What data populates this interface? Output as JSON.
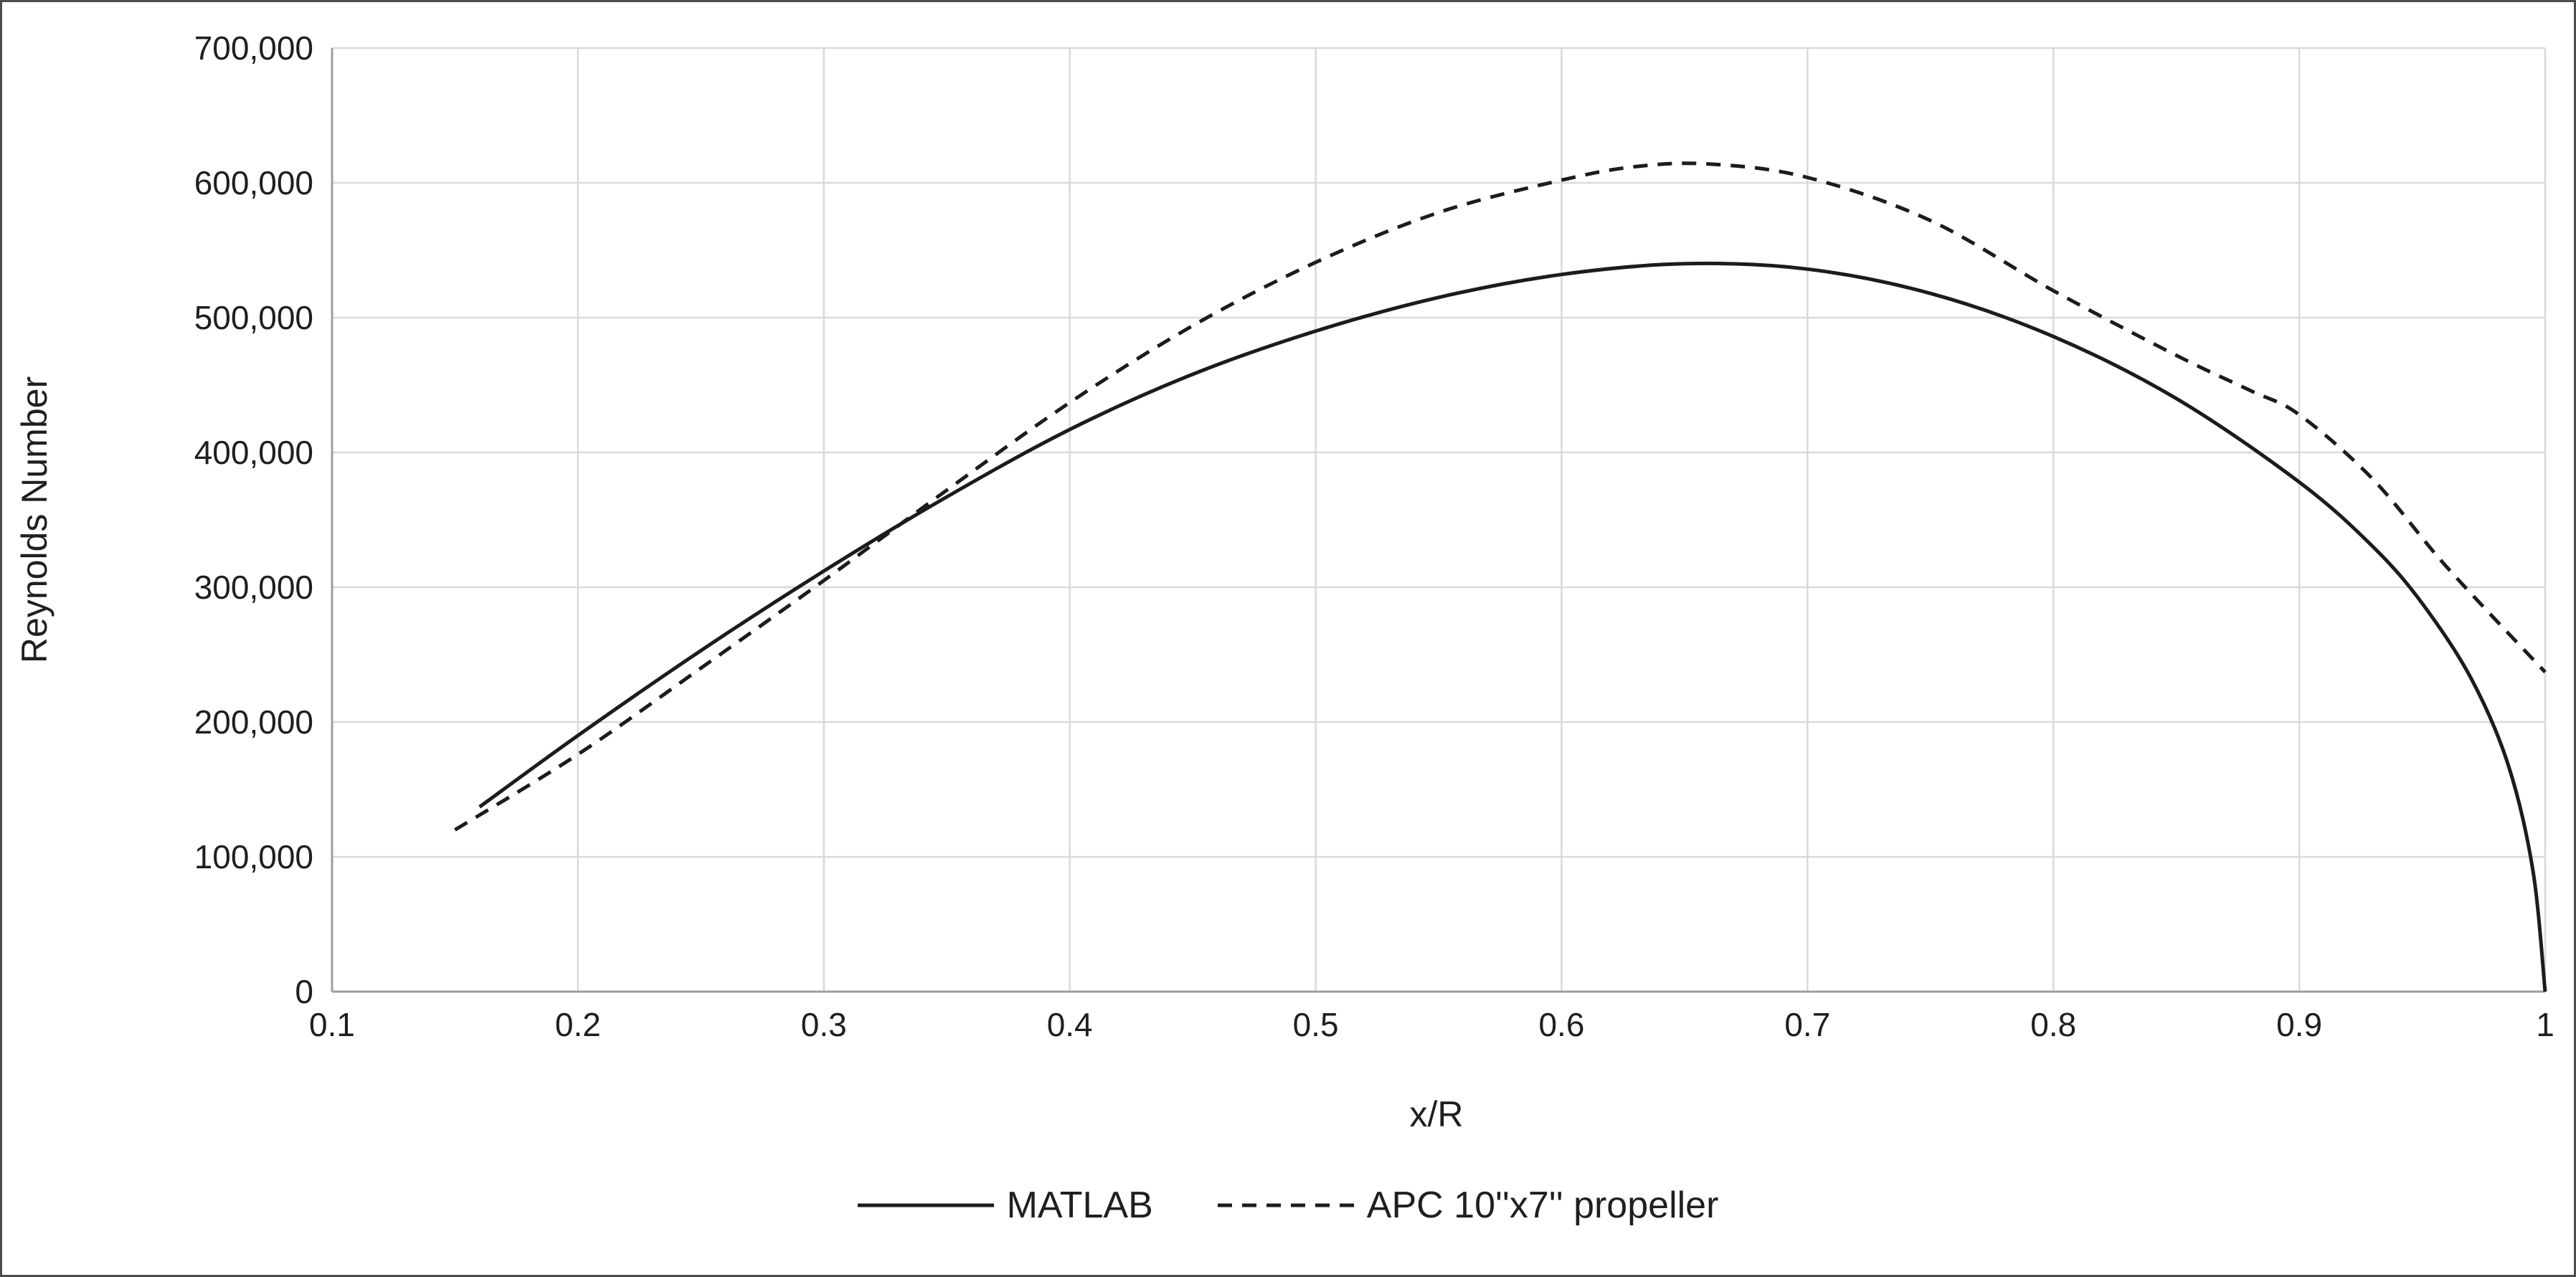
{
  "chart_data": {
    "type": "line",
    "title": "",
    "xlabel": "x/R",
    "ylabel": "Reynolds Number",
    "xlim": [
      0.1,
      1.0
    ],
    "ylim": [
      0,
      700000
    ],
    "grid": true,
    "legend_position": "bottom",
    "xtick_values": [
      0.1,
      0.2,
      0.3,
      0.4,
      0.5,
      0.6,
      0.7,
      0.8,
      0.9,
      1
    ],
    "xtick_labels": [
      "0.1",
      "0.2",
      "0.3",
      "0.4",
      "0.5",
      "0.6",
      "0.7",
      "0.8",
      "0.9",
      "1"
    ],
    "ytick_values": [
      0,
      100000,
      200000,
      300000,
      400000,
      500000,
      600000,
      700000
    ],
    "ytick_labels": [
      "0",
      "100,000",
      "200,000",
      "300,000",
      "400,000",
      "500,000",
      "600,000",
      "700,000"
    ],
    "series": [
      {
        "name": "MATLAB",
        "line": "solid",
        "color": "#1c1c1c",
        "points": [
          [
            0.16,
            137000
          ],
          [
            0.2,
            190000
          ],
          [
            0.25,
            253000
          ],
          [
            0.3,
            312000
          ],
          [
            0.35,
            367000
          ],
          [
            0.4,
            417000
          ],
          [
            0.45,
            458000
          ],
          [
            0.5,
            490000
          ],
          [
            0.55,
            515000
          ],
          [
            0.6,
            532000
          ],
          [
            0.65,
            540000
          ],
          [
            0.7,
            536000
          ],
          [
            0.75,
            518000
          ],
          [
            0.8,
            486000
          ],
          [
            0.85,
            440000
          ],
          [
            0.9,
            378000
          ],
          [
            0.93,
            330000
          ],
          [
            0.95,
            288000
          ],
          [
            0.97,
            232000
          ],
          [
            0.985,
            168000
          ],
          [
            0.995,
            90000
          ],
          [
            1.0,
            0
          ]
        ]
      },
      {
        "name": "APC 10''x7'' propeller",
        "line": "dashed",
        "color": "#1c1c1c",
        "points": [
          [
            0.15,
            120000
          ],
          [
            0.2,
            176000
          ],
          [
            0.25,
            240000
          ],
          [
            0.3,
            305000
          ],
          [
            0.35,
            372000
          ],
          [
            0.4,
            437000
          ],
          [
            0.45,
            494000
          ],
          [
            0.5,
            541000
          ],
          [
            0.55,
            578000
          ],
          [
            0.6,
            602000
          ],
          [
            0.63,
            612000
          ],
          [
            0.66,
            614000
          ],
          [
            0.7,
            604000
          ],
          [
            0.75,
            572000
          ],
          [
            0.8,
            520000
          ],
          [
            0.85,
            472000
          ],
          [
            0.88,
            446000
          ],
          [
            0.9,
            428000
          ],
          [
            0.93,
            380000
          ],
          [
            0.96,
            315000
          ],
          [
            1.0,
            237000
          ]
        ]
      }
    ]
  }
}
